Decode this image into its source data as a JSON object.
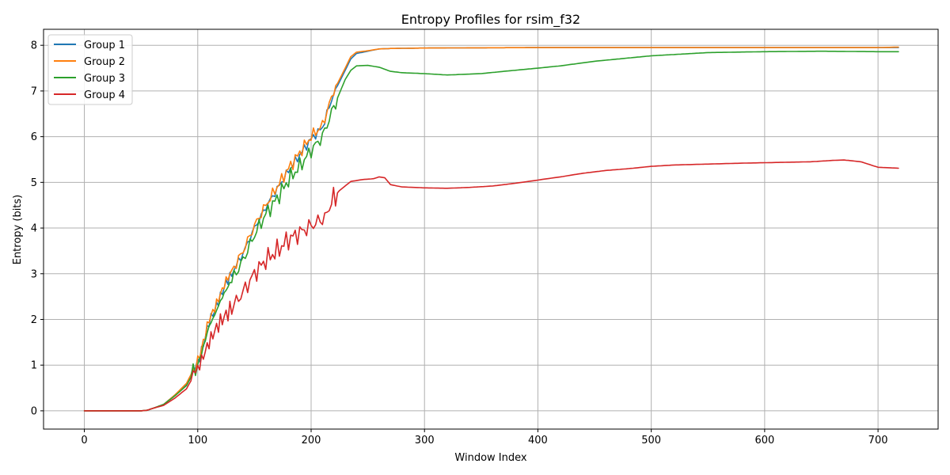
{
  "chart_data": {
    "type": "line",
    "title": "Entropy Profiles for rsim_f32",
    "xlabel": "Window Index",
    "ylabel": "Entropy (bits)",
    "xlim": [
      -36,
      753
    ],
    "ylim": [
      -0.4,
      8.35
    ],
    "xticks": [
      0,
      100,
      200,
      300,
      400,
      500,
      600,
      700
    ],
    "yticks": [
      0,
      1,
      2,
      3,
      4,
      5,
      6,
      7,
      8
    ],
    "grid": true,
    "legend_position": "top-left",
    "series": [
      {
        "name": "Group 1",
        "color": "#1f77b4",
        "points": [
          [
            0,
            0
          ],
          [
            50,
            0
          ],
          [
            55,
            0.01
          ],
          [
            60,
            0.05
          ],
          [
            70,
            0.14
          ],
          [
            80,
            0.35
          ],
          [
            90,
            0.58
          ],
          [
            100,
            1.05
          ],
          [
            105,
            1.45
          ],
          [
            110,
            1.95
          ],
          [
            115,
            2.2
          ],
          [
            120,
            2.5
          ],
          [
            125,
            2.8
          ],
          [
            130,
            3.0
          ],
          [
            140,
            3.45
          ],
          [
            150,
            4.0
          ],
          [
            160,
            4.45
          ],
          [
            170,
            4.85
          ],
          [
            180,
            5.25
          ],
          [
            190,
            5.6
          ],
          [
            200,
            5.95
          ],
          [
            210,
            6.2
          ],
          [
            220,
            6.95
          ],
          [
            225,
            7.2
          ],
          [
            230,
            7.45
          ],
          [
            235,
            7.7
          ],
          [
            240,
            7.82
          ],
          [
            250,
            7.87
          ],
          [
            260,
            7.92
          ],
          [
            270,
            7.93
          ],
          [
            300,
            7.94
          ],
          [
            400,
            7.95
          ],
          [
            500,
            7.95
          ],
          [
            600,
            7.95
          ],
          [
            700,
            7.95
          ],
          [
            718,
            7.95
          ]
        ]
      },
      {
        "name": "Group 2",
        "color": "#ff7f0e",
        "points": [
          [
            0,
            0
          ],
          [
            50,
            0
          ],
          [
            55,
            0.01
          ],
          [
            60,
            0.05
          ],
          [
            70,
            0.14
          ],
          [
            80,
            0.35
          ],
          [
            90,
            0.6
          ],
          [
            100,
            1.08
          ],
          [
            105,
            1.5
          ],
          [
            110,
            2.0
          ],
          [
            115,
            2.25
          ],
          [
            120,
            2.55
          ],
          [
            125,
            2.85
          ],
          [
            130,
            3.05
          ],
          [
            140,
            3.5
          ],
          [
            150,
            4.05
          ],
          [
            160,
            4.5
          ],
          [
            170,
            4.9
          ],
          [
            180,
            5.3
          ],
          [
            190,
            5.65
          ],
          [
            200,
            6.0
          ],
          [
            210,
            6.25
          ],
          [
            220,
            7.0
          ],
          [
            225,
            7.25
          ],
          [
            230,
            7.5
          ],
          [
            235,
            7.75
          ],
          [
            240,
            7.85
          ],
          [
            250,
            7.88
          ],
          [
            260,
            7.92
          ],
          [
            270,
            7.93
          ],
          [
            300,
            7.94
          ],
          [
            400,
            7.95
          ],
          [
            500,
            7.95
          ],
          [
            600,
            7.95
          ],
          [
            700,
            7.95
          ],
          [
            718,
            7.96
          ]
        ]
      },
      {
        "name": "Group 3",
        "color": "#2ca02c",
        "points": [
          [
            0,
            0
          ],
          [
            50,
            0
          ],
          [
            55,
            0.01
          ],
          [
            60,
            0.05
          ],
          [
            70,
            0.14
          ],
          [
            80,
            0.33
          ],
          [
            90,
            0.55
          ],
          [
            100,
            1.0
          ],
          [
            105,
            1.4
          ],
          [
            110,
            1.85
          ],
          [
            115,
            2.1
          ],
          [
            120,
            2.4
          ],
          [
            125,
            2.65
          ],
          [
            130,
            2.85
          ],
          [
            140,
            3.3
          ],
          [
            150,
            3.85
          ],
          [
            160,
            4.3
          ],
          [
            170,
            4.65
          ],
          [
            180,
            5.05
          ],
          [
            190,
            5.35
          ],
          [
            200,
            5.7
          ],
          [
            210,
            6.0
          ],
          [
            220,
            6.65
          ],
          [
            225,
            6.95
          ],
          [
            230,
            7.25
          ],
          [
            235,
            7.45
          ],
          [
            240,
            7.55
          ],
          [
            250,
            7.56
          ],
          [
            260,
            7.52
          ],
          [
            270,
            7.43
          ],
          [
            280,
            7.4
          ],
          [
            300,
            7.38
          ],
          [
            320,
            7.35
          ],
          [
            350,
            7.38
          ],
          [
            370,
            7.43
          ],
          [
            400,
            7.5
          ],
          [
            420,
            7.55
          ],
          [
            450,
            7.65
          ],
          [
            500,
            7.77
          ],
          [
            550,
            7.84
          ],
          [
            600,
            7.86
          ],
          [
            650,
            7.87
          ],
          [
            700,
            7.86
          ],
          [
            718,
            7.86
          ]
        ]
      },
      {
        "name": "Group 4",
        "color": "#d62728",
        "points": [
          [
            0,
            0
          ],
          [
            50,
            0
          ],
          [
            55,
            0.01
          ],
          [
            60,
            0.05
          ],
          [
            70,
            0.12
          ],
          [
            80,
            0.28
          ],
          [
            90,
            0.48
          ],
          [
            100,
            0.92
          ],
          [
            105,
            1.2
          ],
          [
            110,
            1.5
          ],
          [
            115,
            1.75
          ],
          [
            120,
            1.95
          ],
          [
            125,
            2.1
          ],
          [
            130,
            2.25
          ],
          [
            140,
            2.6
          ],
          [
            150,
            3.0
          ],
          [
            160,
            3.3
          ],
          [
            170,
            3.5
          ],
          [
            180,
            3.75
          ],
          [
            190,
            3.9
          ],
          [
            200,
            4.05
          ],
          [
            210,
            4.2
          ],
          [
            214,
            4.28
          ],
          [
            218,
            4.62
          ],
          [
            225,
            4.82
          ],
          [
            235,
            5.02
          ],
          [
            245,
            5.06
          ],
          [
            255,
            5.08
          ],
          [
            260,
            5.12
          ],
          [
            265,
            5.1
          ],
          [
            270,
            4.95
          ],
          [
            280,
            4.9
          ],
          [
            300,
            4.88
          ],
          [
            320,
            4.87
          ],
          [
            340,
            4.89
          ],
          [
            360,
            4.92
          ],
          [
            380,
            4.98
          ],
          [
            400,
            5.05
          ],
          [
            420,
            5.12
          ],
          [
            440,
            5.2
          ],
          [
            460,
            5.26
          ],
          [
            480,
            5.3
          ],
          [
            500,
            5.35
          ],
          [
            520,
            5.38
          ],
          [
            550,
            5.4
          ],
          [
            580,
            5.42
          ],
          [
            600,
            5.43
          ],
          [
            620,
            5.44
          ],
          [
            640,
            5.45
          ],
          [
            660,
            5.48
          ],
          [
            670,
            5.49
          ],
          [
            685,
            5.45
          ],
          [
            700,
            5.33
          ],
          [
            718,
            5.31
          ]
        ]
      }
    ]
  }
}
